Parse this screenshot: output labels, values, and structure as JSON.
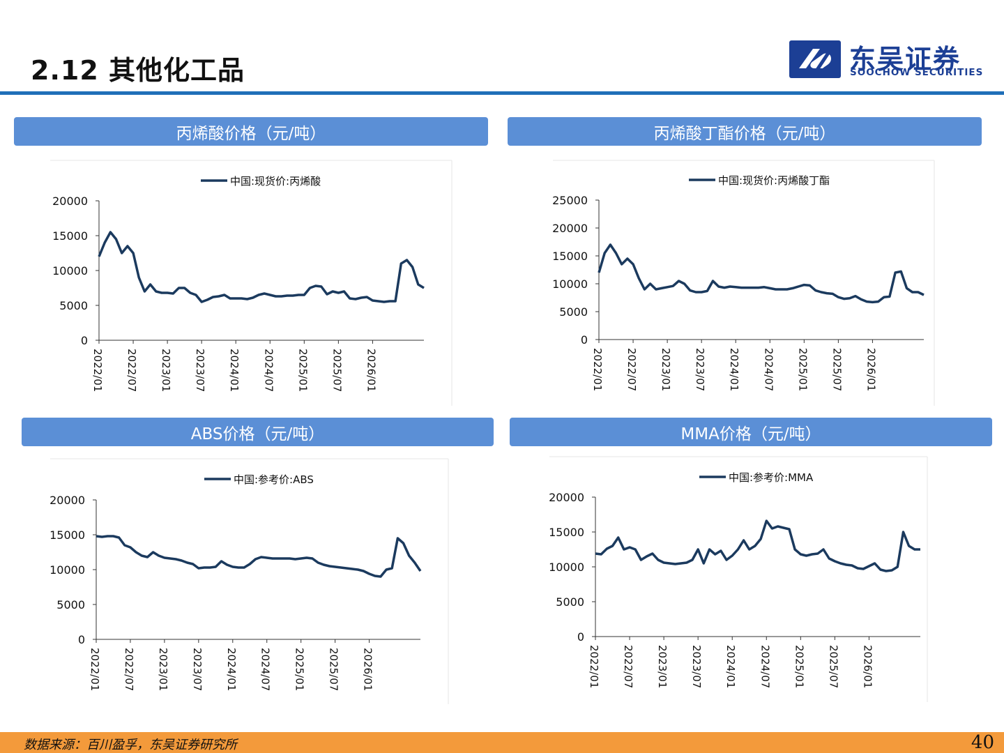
{
  "page": {
    "title": "2.12 其他化工品",
    "page_number": "40"
  },
  "logo": {
    "cn": "东吴证券",
    "en": "SOOCHOW SECURITIES"
  },
  "footer": {
    "source": "数据来源：百川盈孚，东吴证券研究所"
  },
  "colors": {
    "accent": "#1f6fb8",
    "header_bg": "#5b8fd6",
    "line": "#1b3a5e",
    "footer_bg": "#f39a3b"
  },
  "panels": [
    {
      "header": "丙烯酸价格（元/吨）"
    },
    {
      "header": "丙烯酸丁酯价格（元/吨）"
    },
    {
      "header": "ABS价格（元/吨）"
    },
    {
      "header": "MMA价格（元/吨）"
    }
  ],
  "chart_data": [
    {
      "type": "line",
      "legend": "中国:现货价:丙烯酸",
      "ylim": [
        0,
        20000
      ],
      "yticks": [
        0,
        5000,
        10000,
        15000,
        20000
      ],
      "xlim": [
        "2022/01",
        "2026/10"
      ],
      "xticks": [
        "2022/01",
        "2022/07",
        "2023/01",
        "2023/07",
        "2024/01",
        "2024/07",
        "2025/01",
        "2025/07",
        "2026/01"
      ],
      "series": [
        {
          "x": [
            "2022/01",
            "2022/02",
            "2022/03",
            "2022/04",
            "2022/05",
            "2022/06",
            "2022/07",
            "2022/08",
            "2022/09",
            "2022/10",
            "2022/11",
            "2022/12",
            "2023/01",
            "2023/02",
            "2023/03",
            "2023/04",
            "2023/05",
            "2023/06",
            "2023/07",
            "2023/08",
            "2023/09",
            "2023/10",
            "2023/11",
            "2023/12",
            "2024/01",
            "2024/02",
            "2024/03",
            "2024/04",
            "2024/05",
            "2024/06",
            "2024/07",
            "2024/08",
            "2024/09",
            "2024/10",
            "2024/11",
            "2024/12",
            "2025/01",
            "2025/02",
            "2025/03",
            "2025/04",
            "2025/05",
            "2025/06",
            "2025/07",
            "2025/08",
            "2025/09",
            "2025/10",
            "2025/11",
            "2025/12",
            "2026/01",
            "2026/02",
            "2026/03",
            "2026/04",
            "2026/05",
            "2026/06",
            "2026/07",
            "2026/08",
            "2026/09",
            "2026/10"
          ],
          "values": [
            12000,
            14000,
            15500,
            14500,
            12500,
            13500,
            12500,
            9000,
            7000,
            8000,
            7000,
            6800,
            6800,
            6700,
            7500,
            7500,
            6800,
            6500,
            5500,
            5800,
            6200,
            6300,
            6500,
            6000,
            6000,
            6000,
            5900,
            6100,
            6500,
            6700,
            6500,
            6300,
            6300,
            6400,
            6400,
            6500,
            6500,
            7500,
            7800,
            7700,
            6600,
            7000,
            6800,
            7000,
            6000,
            5900,
            6100,
            6200,
            5700,
            5600,
            5500,
            5600,
            5600,
            11000,
            11500,
            10500,
            8000,
            7500
          ]
        }
      ]
    },
    {
      "type": "line",
      "legend": "中国:现货价:丙烯酸丁酯",
      "ylim": [
        0,
        25000
      ],
      "yticks": [
        0,
        5000,
        10000,
        15000,
        20000,
        25000
      ],
      "xlim": [
        "2022/01",
        "2026/10"
      ],
      "xticks": [
        "2022/01",
        "2022/07",
        "2023/01",
        "2023/07",
        "2024/01",
        "2024/07",
        "2025/01",
        "2025/07",
        "2026/01"
      ],
      "series": [
        {
          "x": [
            "2022/01",
            "2022/02",
            "2022/03",
            "2022/04",
            "2022/05",
            "2022/06",
            "2022/07",
            "2022/08",
            "2022/09",
            "2022/10",
            "2022/11",
            "2022/12",
            "2023/01",
            "2023/02",
            "2023/03",
            "2023/04",
            "2023/05",
            "2023/06",
            "2023/07",
            "2023/08",
            "2023/09",
            "2023/10",
            "2023/11",
            "2023/12",
            "2024/01",
            "2024/02",
            "2024/03",
            "2024/04",
            "2024/05",
            "2024/06",
            "2024/07",
            "2024/08",
            "2024/09",
            "2024/10",
            "2024/11",
            "2024/12",
            "2025/01",
            "2025/02",
            "2025/03",
            "2025/04",
            "2025/05",
            "2025/06",
            "2025/07",
            "2025/08",
            "2025/09",
            "2025/10",
            "2025/11",
            "2025/12",
            "2026/01",
            "2026/02",
            "2026/03",
            "2026/04",
            "2026/05",
            "2026/06",
            "2026/07",
            "2026/08",
            "2026/09",
            "2026/10"
          ],
          "values": [
            12000,
            15500,
            17000,
            15500,
            13500,
            14500,
            13500,
            11000,
            9000,
            10000,
            9000,
            9200,
            9400,
            9600,
            10500,
            10000,
            8800,
            8500,
            8500,
            8700,
            10500,
            9500,
            9300,
            9500,
            9400,
            9300,
            9300,
            9300,
            9300,
            9400,
            9200,
            9000,
            9000,
            9000,
            9200,
            9500,
            9800,
            9700,
            8800,
            8500,
            8300,
            8200,
            7600,
            7300,
            7400,
            7800,
            7200,
            6800,
            6700,
            6800,
            7600,
            7700,
            12000,
            12200,
            9200,
            8500,
            8500,
            8000
          ]
        }
      ]
    },
    {
      "type": "line",
      "legend": "中国:参考价:ABS",
      "ylim": [
        0,
        20000
      ],
      "yticks": [
        0,
        5000,
        10000,
        15000,
        20000
      ],
      "xlim": [
        "2022/01",
        "2026/10"
      ],
      "xticks": [
        "2022/01",
        "2022/07",
        "2023/01",
        "2023/07",
        "2024/01",
        "2024/07",
        "2025/01",
        "2025/07",
        "2026/01"
      ],
      "series": [
        {
          "x": [
            "2022/01",
            "2022/02",
            "2022/03",
            "2022/04",
            "2022/05",
            "2022/06",
            "2022/07",
            "2022/08",
            "2022/09",
            "2022/10",
            "2022/11",
            "2022/12",
            "2023/01",
            "2023/02",
            "2023/03",
            "2023/04",
            "2023/05",
            "2023/06",
            "2023/07",
            "2023/08",
            "2023/09",
            "2023/10",
            "2023/11",
            "2023/12",
            "2024/01",
            "2024/02",
            "2024/03",
            "2024/04",
            "2024/05",
            "2024/06",
            "2024/07",
            "2024/08",
            "2024/09",
            "2024/10",
            "2024/11",
            "2024/12",
            "2025/01",
            "2025/02",
            "2025/03",
            "2025/04",
            "2025/05",
            "2025/06",
            "2025/07",
            "2025/08",
            "2025/09",
            "2025/10",
            "2025/11",
            "2025/12",
            "2026/01",
            "2026/02",
            "2026/03",
            "2026/04",
            "2026/05",
            "2026/06",
            "2026/07",
            "2026/08",
            "2026/09",
            "2026/10"
          ],
          "values": [
            14800,
            14700,
            14800,
            14800,
            14600,
            13500,
            13200,
            12500,
            12000,
            11800,
            12500,
            12000,
            11700,
            11600,
            11500,
            11300,
            11000,
            10800,
            10200,
            10300,
            10300,
            10400,
            11200,
            10700,
            10400,
            10300,
            10300,
            10800,
            11500,
            11800,
            11700,
            11600,
            11600,
            11600,
            11600,
            11500,
            11600,
            11700,
            11600,
            11000,
            10700,
            10500,
            10400,
            10300,
            10200,
            10100,
            10000,
            9800,
            9400,
            9100,
            9000,
            10000,
            10200,
            14500,
            13800,
            12000,
            11000,
            9800
          ]
        }
      ]
    },
    {
      "type": "line",
      "legend": "中国:参考价:MMA",
      "ylim": [
        0,
        20000
      ],
      "yticks": [
        0,
        5000,
        10000,
        15000,
        20000
      ],
      "xlim": [
        "2022/01",
        "2026/10"
      ],
      "xticks": [
        "2022/01",
        "2022/07",
        "2023/01",
        "2023/07",
        "2024/01",
        "2024/07",
        "2025/01",
        "2025/07",
        "2026/01"
      ],
      "series": [
        {
          "x": [
            "2022/01",
            "2022/02",
            "2022/03",
            "2022/04",
            "2022/05",
            "2022/06",
            "2022/07",
            "2022/08",
            "2022/09",
            "2022/10",
            "2022/11",
            "2022/12",
            "2023/01",
            "2023/02",
            "2023/03",
            "2023/04",
            "2023/05",
            "2023/06",
            "2023/07",
            "2023/08",
            "2023/09",
            "2023/10",
            "2023/11",
            "2023/12",
            "2024/01",
            "2024/02",
            "2024/03",
            "2024/04",
            "2024/05",
            "2024/06",
            "2024/07",
            "2024/08",
            "2024/09",
            "2024/10",
            "2024/11",
            "2024/12",
            "2025/01",
            "2025/02",
            "2025/03",
            "2025/04",
            "2025/05",
            "2025/06",
            "2025/07",
            "2025/08",
            "2025/09",
            "2025/10",
            "2025/11",
            "2025/12",
            "2026/01",
            "2026/02",
            "2026/03",
            "2026/04",
            "2026/05",
            "2026/06",
            "2026/07",
            "2026/08",
            "2026/09",
            "2026/10"
          ],
          "values": [
            11900,
            11800,
            12600,
            13000,
            14200,
            12500,
            12800,
            12500,
            11000,
            11500,
            11900,
            11000,
            10600,
            10500,
            10400,
            10500,
            10600,
            11000,
            12500,
            10500,
            12500,
            11800,
            12300,
            11000,
            11600,
            12500,
            13800,
            12500,
            13000,
            14000,
            16600,
            15500,
            15800,
            15600,
            15400,
            12500,
            11800,
            11600,
            11800,
            11900,
            12500,
            11200,
            10800,
            10500,
            10300,
            10200,
            9800,
            9700,
            10100,
            10500,
            9600,
            9400,
            9500,
            10000,
            15000,
            13000,
            12500,
            12500
          ]
        }
      ]
    }
  ]
}
